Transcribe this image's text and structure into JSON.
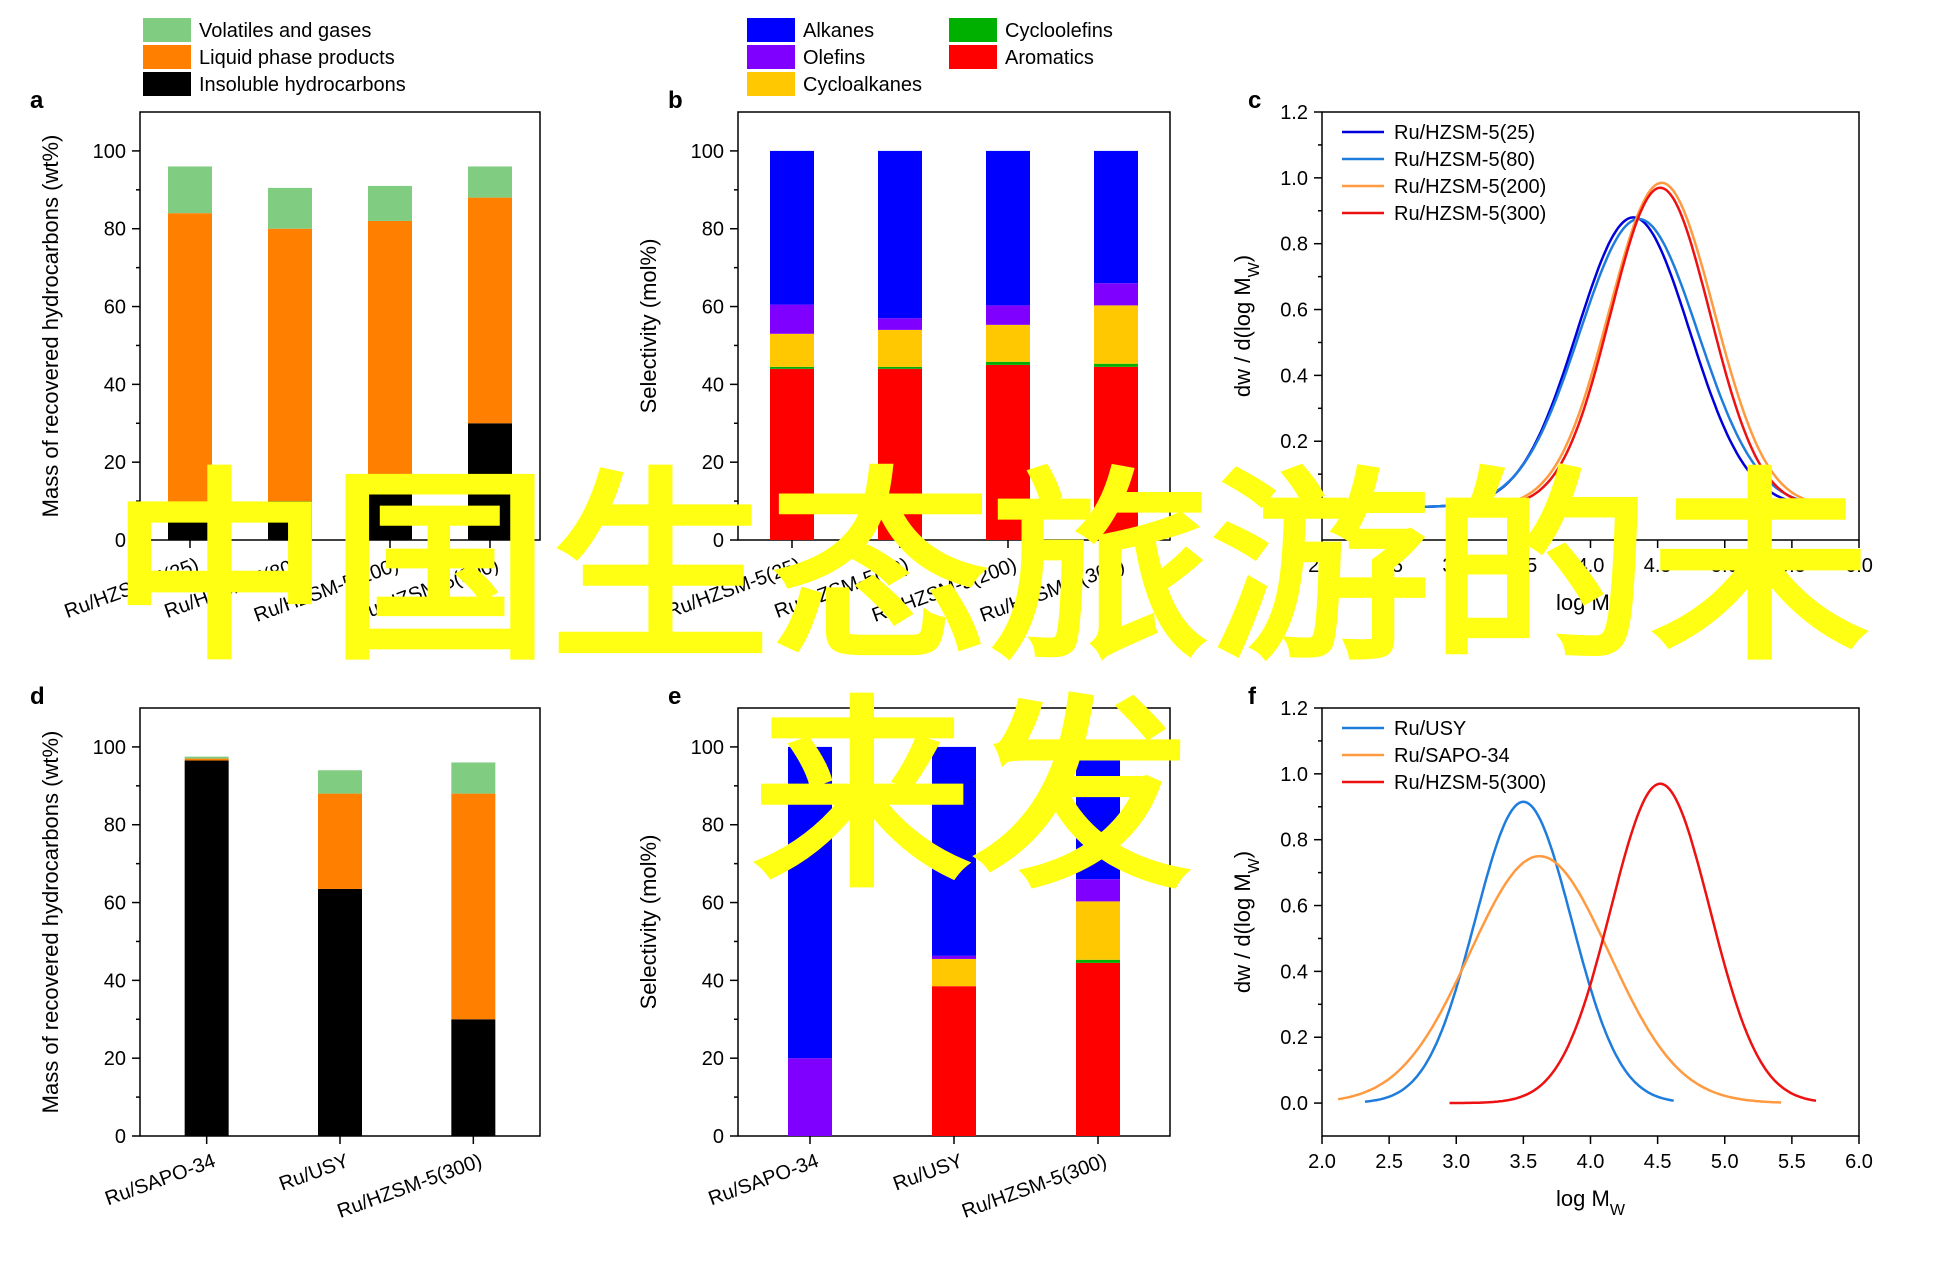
{
  "overlay": {
    "line1": "中国生态旅游的未",
    "line2": "来发",
    "color": "#ffff14"
  },
  "chart_data": [
    {
      "panel": "a",
      "type": "bar",
      "stacked": true,
      "ylabel": "Mass of recovered hydrocarbons (wt%)",
      "ylim": [
        0,
        110
      ],
      "yticks": [
        0,
        20,
        40,
        60,
        80,
        100
      ],
      "categories": [
        "Ru/HZSM-5(25)",
        "Ru/HZSM-5(80)",
        "Ru/HZSM-5(200)",
        "Ru/HZSM-5(300)"
      ],
      "series": [
        {
          "name": "Insoluble hydrocarbons",
          "color": "#000000",
          "values": [
            6.5,
            10,
            14,
            30
          ]
        },
        {
          "name": "Liquid phase products",
          "color": "#ff8000",
          "values": [
            77.5,
            70,
            68,
            58
          ]
        },
        {
          "name": "Volatiles and gases",
          "color": "#80cc80",
          "values": [
            12,
            10.5,
            9,
            8
          ]
        }
      ],
      "legend": [
        "Volatiles and gases",
        "Liquid phase products",
        "Insoluble hydrocarbons"
      ]
    },
    {
      "panel": "b",
      "type": "bar",
      "stacked": true,
      "ylabel": "Selectivity (mol%)",
      "ylim": [
        0,
        110
      ],
      "yticks": [
        0,
        20,
        40,
        60,
        80,
        100
      ],
      "categories": [
        "Ru/HZSM-5(25)",
        "Ru/HZSM-5(80)",
        "Ru/HZSM-5(200)",
        "Ru/HZSM-5(300)"
      ],
      "series": [
        {
          "name": "Aromatics",
          "color": "#ff0000",
          "values": [
            44,
            44,
            45,
            44.5
          ]
        },
        {
          "name": "Cycloolefins",
          "color": "#00b000",
          "values": [
            0.5,
            0.5,
            0.8,
            0.8
          ]
        },
        {
          "name": "Cycloalkanes",
          "color": "#ffc800",
          "values": [
            8.5,
            9.5,
            9.5,
            15
          ]
        },
        {
          "name": "Olefins",
          "color": "#8000ff",
          "values": [
            7.5,
            3,
            5,
            5.7
          ]
        },
        {
          "name": "Alkanes",
          "color": "#0000ff",
          "values": [
            39.5,
            43,
            39.7,
            34
          ]
        }
      ],
      "legend": [
        "Alkanes",
        "Olefins",
        "Cycloalkanes",
        "Cycloolefins",
        "Aromatics"
      ]
    },
    {
      "panel": "c",
      "type": "line",
      "xlabel": "log M",
      "xlabel_sub": "W",
      "ylabel": "dw / d(log M",
      "ylabel_sub": "W",
      "ylabel_end": ")",
      "xlim": [
        2.0,
        6.0
      ],
      "ylim": [
        -0.1,
        1.2
      ],
      "xticks": [
        "2.0",
        "2.5",
        "3.0",
        "3.5",
        "4.0",
        "4.5",
        "5.0",
        "5.5",
        "6.0"
      ],
      "yticks": [
        "0.0",
        "0.2",
        "0.4",
        "0.6",
        "0.8",
        "1.0",
        "1.2"
      ],
      "series": [
        {
          "name": "Ru/HZSM-5(25)",
          "color": "#0000dd",
          "peak_x": 4.32,
          "peak_y": 0.88,
          "sigma": 0.42,
          "x_start": 2.75,
          "x_end": 5.7
        },
        {
          "name": "Ru/HZSM-5(80)",
          "color": "#1e7ddc",
          "peak_x": 4.36,
          "peak_y": 0.875,
          "sigma": 0.44,
          "x_start": 2.75,
          "x_end": 5.7
        },
        {
          "name": "Ru/HZSM-5(200)",
          "color": "#ff9a40",
          "peak_x": 4.53,
          "peak_y": 0.985,
          "sigma": 0.39,
          "x_start": 2.95,
          "x_end": 5.7
        },
        {
          "name": "Ru/HZSM-5(300)",
          "color": "#ee1111",
          "peak_x": 4.52,
          "peak_y": 0.97,
          "sigma": 0.37,
          "x_start": 2.95,
          "x_end": 5.7
        }
      ],
      "legend": "top-left"
    },
    {
      "panel": "d",
      "type": "bar",
      "stacked": true,
      "ylabel": "Mass of recovered hydrocarbons (wt%)",
      "ylim": [
        0,
        110
      ],
      "yticks": [
        0,
        20,
        40,
        60,
        80,
        100
      ],
      "categories": [
        "Ru/SAPO-34",
        "Ru/USY",
        "Ru/HZSM-5(300)"
      ],
      "series": [
        {
          "name": "Insoluble hydrocarbons",
          "color": "#000000",
          "values": [
            96.5,
            63.5,
            30
          ]
        },
        {
          "name": "Liquid phase products",
          "color": "#ff8000",
          "values": [
            0.5,
            24.5,
            58
          ]
        },
        {
          "name": "Volatiles and gases",
          "color": "#80cc80",
          "values": [
            0.5,
            6,
            8
          ]
        }
      ]
    },
    {
      "panel": "e",
      "type": "bar",
      "stacked": true,
      "ylabel": "Selectivity (mol%)",
      "ylim": [
        0,
        110
      ],
      "yticks": [
        0,
        20,
        40,
        60,
        80,
        100
      ],
      "categories": [
        "Ru/SAPO-34",
        "Ru/USY",
        "Ru/HZSM-5(300)"
      ],
      "series": [
        {
          "name": "Aromatics",
          "color": "#ff0000",
          "values": [
            0,
            38.5,
            44.5
          ]
        },
        {
          "name": "Cycloolefins",
          "color": "#00b000",
          "values": [
            0,
            0,
            0.8
          ]
        },
        {
          "name": "Cycloalkanes",
          "color": "#ffc800",
          "values": [
            0,
            7,
            15
          ]
        },
        {
          "name": "Olefins",
          "color": "#8000ff",
          "values": [
            20,
            0.8,
            5.7
          ]
        },
        {
          "name": "Alkanes",
          "color": "#0000ff",
          "values": [
            80,
            53.7,
            34
          ]
        }
      ]
    },
    {
      "panel": "f",
      "type": "line",
      "xlabel": "log M",
      "xlabel_sub": "W",
      "ylabel": "dw / d(log M",
      "ylabel_sub": "W",
      "ylabel_end": ")",
      "xlim": [
        2.0,
        6.0
      ],
      "ylim": [
        -0.1,
        1.2
      ],
      "xticks": [
        "2.0",
        "2.5",
        "3.0",
        "3.5",
        "4.0",
        "4.5",
        "5.0",
        "5.5",
        "6.0"
      ],
      "yticks": [
        "0.0",
        "0.2",
        "0.4",
        "0.6",
        "0.8",
        "1.0",
        "1.2"
      ],
      "series": [
        {
          "name": "Ru/USY",
          "color": "#1e7ddc",
          "peak_x": 3.5,
          "peak_y": 0.915,
          "sigma": 0.36,
          "x_start": 2.32,
          "x_end": 4.62
        },
        {
          "name": "Ru/SAPO-34",
          "color": "#ff9a40",
          "peak_x": 3.62,
          "peak_y": 0.75,
          "sigma": 0.52,
          "x_start": 2.12,
          "x_end": 5.42
        },
        {
          "name": "Ru/HZSM-5(300)",
          "color": "#ee1111",
          "peak_x": 4.52,
          "peak_y": 0.97,
          "sigma": 0.37,
          "x_start": 2.95,
          "x_end": 5.68
        }
      ],
      "legend": "top-left"
    }
  ]
}
